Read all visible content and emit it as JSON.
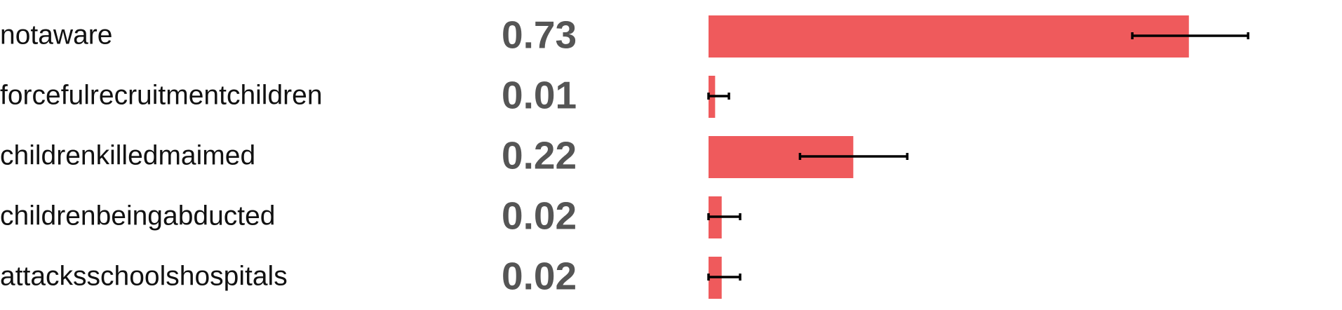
{
  "chart_data": {
    "type": "bar",
    "orientation": "horizontal",
    "categories": [
      "notaware",
      "forcefulrecruitmentchildren",
      "childrenkilledmaimed",
      "childrenbeingabducted",
      "attacksschoolshospitals"
    ],
    "values": [
      0.73,
      0.01,
      0.22,
      0.02,
      0.02
    ],
    "value_labels": [
      "0.73",
      "0.01",
      "0.22",
      "0.02",
      "0.02"
    ],
    "error_low": [
      0.644,
      0.0,
      0.139,
      0.0,
      0.0
    ],
    "error_high": [
      0.82,
      0.031,
      0.302,
      0.048,
      0.048
    ],
    "title": "",
    "xlabel": "",
    "ylabel": "",
    "xlim": [
      0,
      0.83
    ],
    "grid": false,
    "legend": "none",
    "bar_color": "#ef5a5c",
    "error_color": "#000000",
    "label_color": "#111111",
    "value_label_color": "#555555"
  }
}
